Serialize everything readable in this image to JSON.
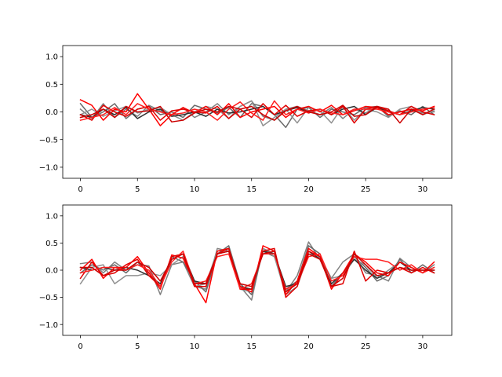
{
  "chart_data": [
    {
      "type": "line",
      "xlim": [
        -1.55,
        32.55
      ],
      "ylim": [
        -1.2,
        1.2
      ],
      "xticks": [
        0,
        5,
        10,
        15,
        20,
        25,
        30
      ],
      "xtick_labels": [
        "0",
        "5",
        "10",
        "15",
        "20",
        "25",
        "30"
      ],
      "yticks": [
        -1.0,
        -0.5,
        0.0,
        0.5,
        1.0
      ],
      "ytick_labels": [
        "−1.0",
        "−0.5",
        "0.0",
        "0.5",
        "1.0"
      ],
      "series": [
        {
          "color": "#808080",
          "values": [
            0.05,
            -0.12,
            0.15,
            -0.1,
            0.05,
            -0.08,
            0.12,
            0.02,
            -0.05,
            0.08,
            -0.1,
            0.0,
            0.15,
            -0.05,
            0.1,
            0.2,
            -0.08,
            -0.15,
            0.05,
            0.1,
            0.02,
            -0.05,
            0.08,
            -0.12,
            0.05,
            -0.02,
            0.1,
            -0.05,
            0.0,
            0.05,
            -0.02,
            0.0
          ]
        },
        {
          "color": "#696969",
          "values": [
            0.15,
            -0.1,
            0.0,
            0.15,
            -0.12,
            0.05,
            0.1,
            -0.05,
            0.0,
            -0.1,
            0.12,
            0.05,
            -0.02,
            0.08,
            -0.1,
            0.15,
            0.1,
            -0.05,
            -0.28,
            0.05,
            0.08,
            -0.1,
            0.05,
            0.0,
            -0.05,
            0.08,
            0.1,
            -0.08,
            0.02,
            -0.05,
            0.1,
            -0.05
          ]
        },
        {
          "color": "#909090",
          "values": [
            -0.05,
            0.05,
            -0.08,
            0.02,
            0.1,
            -0.02,
            0.05,
            0.08,
            -0.05,
            -0.15,
            0.0,
            0.1,
            0.05,
            -0.12,
            0.1,
            0.2,
            -0.25,
            -0.1,
            0.05,
            -0.2,
            0.08,
            0.02,
            -0.2,
            0.1,
            -0.15,
            0.05,
            0.0,
            -0.1,
            0.05,
            0.1,
            -0.05,
            0.02
          ]
        },
        {
          "color": "#303030",
          "values": [
            -0.05,
            -0.1,
            0.05,
            -0.05,
            0.08,
            -0.12,
            0.0,
            0.05,
            -0.08,
            -0.05,
            0.0,
            -0.08,
            0.05,
            -0.02,
            0.0,
            0.05,
            0.1,
            -0.05,
            0.02,
            0.08,
            -0.02,
            0.05,
            -0.05,
            0.05,
            0.1,
            -0.05,
            0.08,
            0.0,
            -0.05,
            0.02,
            0.08,
            0.05
          ]
        },
        {
          "color": "#ff0000",
          "values": [
            0.22,
            0.12,
            -0.15,
            0.05,
            0.0,
            0.33,
            0.05,
            -0.25,
            -0.05,
            0.08,
            -0.02,
            0.1,
            -0.05,
            0.15,
            -0.1,
            0.0,
            0.05,
            0.1,
            -0.1,
            0.05,
            0.1,
            0.0,
            0.12,
            -0.05,
            0.02,
            0.1,
            0.08,
            -0.05,
            0.0,
            0.05,
            0.02,
            0.1
          ]
        },
        {
          "color": "#e00000",
          "values": [
            -0.05,
            -0.15,
            0.12,
            0.0,
            -0.08,
            0.05,
            0.1,
            -0.15,
            0.02,
            0.05,
            0.0,
            -0.02,
            0.1,
            -0.12,
            0.05,
            -0.1,
            0.15,
            -0.05,
            0.12,
            -0.08,
            0.02,
            0.05,
            -0.05,
            0.1,
            -0.2,
            0.05,
            0.1,
            0.02,
            -0.05,
            0.1,
            0.0,
            -0.05
          ]
        },
        {
          "color": "#ff2020",
          "values": [
            -0.15,
            -0.1,
            -0.05,
            0.08,
            -0.05,
            0.15,
            0.05,
            0.0,
            -0.05,
            -0.02,
            0.05,
            0.0,
            -0.15,
            0.05,
            0.18,
            -0.02,
            -0.15,
            0.2,
            -0.05,
            0.05,
            -0.02,
            0.05,
            -0.02,
            -0.05,
            0.05,
            0.05,
            0.05,
            0.0,
            -0.05,
            0.0,
            0.05,
            0.08
          ]
        },
        {
          "color": "#cc0000",
          "values": [
            -0.1,
            -0.05,
            0.05,
            -0.1,
            0.1,
            0.0,
            0.02,
            0.1,
            -0.18,
            -0.15,
            -0.02,
            0.05,
            0.0,
            0.1,
            0.05,
            0.1,
            -0.05,
            -0.15,
            0.02,
            0.1,
            0.0,
            -0.05,
            0.0,
            0.12,
            -0.08,
            -0.05,
            0.1,
            0.05,
            -0.2,
            0.05,
            -0.05,
            0.05
          ]
        }
      ]
    },
    {
      "type": "line",
      "xlim": [
        -1.55,
        32.55
      ],
      "ylim": [
        -1.2,
        1.2
      ],
      "xticks": [
        0,
        5,
        10,
        15,
        20,
        25,
        30
      ],
      "xtick_labels": [
        "0",
        "5",
        "10",
        "15",
        "20",
        "25",
        "30"
      ],
      "yticks": [
        -1.0,
        -0.5,
        0.0,
        0.5,
        1.0
      ],
      "ytick_labels": [
        "−1.0",
        "−0.5",
        "0.0",
        "0.5",
        "1.0"
      ],
      "series": [
        {
          "color": "#808080",
          "values": [
            0.12,
            0.15,
            -0.05,
            0.15,
            0.0,
            0.1,
            0.08,
            -0.45,
            0.1,
            0.15,
            -0.3,
            -0.35,
            0.4,
            0.35,
            -0.3,
            -0.55,
            0.4,
            0.3,
            -0.4,
            -0.1,
            0.52,
            0.2,
            -0.15,
            0.15,
            0.3,
            -0.05,
            -0.1,
            -0.2,
            0.22,
            0.05,
            -0.05,
            0.1
          ]
        },
        {
          "color": "#696969",
          "values": [
            -0.05,
            0.1,
            0.0,
            0.1,
            -0.05,
            0.15,
            -0.05,
            -0.3,
            0.25,
            0.15,
            -0.2,
            -0.4,
            0.3,
            0.45,
            -0.25,
            -0.45,
            0.35,
            0.25,
            -0.35,
            -0.2,
            0.45,
            0.3,
            -0.3,
            -0.05,
            0.25,
            0.05,
            -0.2,
            -0.1,
            0.2,
            -0.05,
            0.1,
            -0.05
          ]
        },
        {
          "color": "#909090",
          "values": [
            -0.25,
            0.05,
            0.1,
            -0.25,
            -0.1,
            -0.1,
            -0.05,
            -0.1,
            0.1,
            0.25,
            -0.3,
            -0.25,
            0.35,
            0.4,
            -0.35,
            -0.4,
            0.4,
            0.25,
            -0.45,
            -0.3,
            0.3,
            0.25,
            -0.15,
            -0.1,
            0.2,
            0.1,
            -0.15,
            0.0,
            0.15,
            0.05,
            -0.05,
            0.05
          ]
        },
        {
          "color": "#303030",
          "values": [
            0.05,
            0.0,
            0.05,
            0.0,
            0.05,
            0.0,
            -0.1,
            -0.25,
            0.2,
            0.3,
            -0.2,
            -0.25,
            0.3,
            0.35,
            -0.3,
            -0.35,
            0.35,
            0.3,
            -0.3,
            -0.25,
            0.35,
            0.2,
            -0.25,
            -0.05,
            0.2,
            0.0,
            -0.15,
            -0.05,
            0.15,
            0.0,
            0.0,
            0.0
          ]
        },
        {
          "color": "#ff0000",
          "values": [
            0.0,
            0.2,
            -0.15,
            0.05,
            0.05,
            0.25,
            -0.05,
            -0.35,
            0.28,
            0.22,
            -0.25,
            -0.6,
            0.35,
            0.4,
            -0.3,
            -0.4,
            0.45,
            0.35,
            -0.45,
            -0.2,
            0.4,
            0.25,
            -0.35,
            -0.05,
            0.3,
            0.15,
            -0.05,
            -0.1,
            0.15,
            0.05,
            -0.05,
            0.15
          ]
        },
        {
          "color": "#e00000",
          "values": [
            -0.15,
            0.15,
            -0.1,
            -0.05,
            0.1,
            0.2,
            -0.1,
            -0.3,
            0.25,
            0.3,
            -0.3,
            -0.3,
            0.3,
            0.4,
            -0.35,
            -0.35,
            0.35,
            0.4,
            -0.5,
            -0.3,
            0.35,
            0.25,
            -0.3,
            -0.25,
            0.35,
            -0.2,
            0.0,
            -0.05,
            0.05,
            -0.05,
            0.05,
            -0.05
          ]
        },
        {
          "color": "#ff2020",
          "values": [
            -0.05,
            0.0,
            0.05,
            0.05,
            0.0,
            0.1,
            0.0,
            -0.3,
            0.15,
            0.35,
            -0.25,
            -0.2,
            0.25,
            0.3,
            -0.35,
            -0.25,
            0.3,
            0.3,
            -0.35,
            -0.25,
            0.25,
            0.3,
            -0.2,
            -0.1,
            0.25,
            0.2,
            0.2,
            0.15,
            0.0,
            0.1,
            -0.05,
            0.05
          ]
        },
        {
          "color": "#cc0000",
          "values": [
            0.05,
            0.05,
            -0.1,
            0.0,
            0.0,
            0.15,
            0.05,
            -0.2,
            0.2,
            0.3,
            -0.25,
            -0.25,
            0.3,
            0.35,
            -0.25,
            -0.3,
            0.3,
            0.35,
            -0.4,
            -0.25,
            0.3,
            0.2,
            -0.3,
            -0.15,
            0.3,
            0.1,
            -0.1,
            -0.05,
            0.05,
            0.0,
            0.0,
            0.0
          ]
        }
      ]
    }
  ]
}
